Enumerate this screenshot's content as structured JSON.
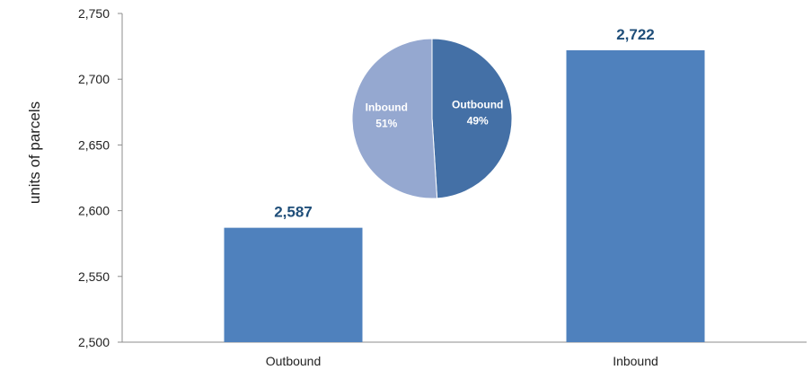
{
  "chart_data": [
    {
      "type": "bar",
      "categories": [
        "Outbound",
        "Inbound"
      ],
      "values": [
        2587,
        2722
      ],
      "data_labels": [
        "2,587",
        "2,722"
      ],
      "ylabel": "units of parcels",
      "ylim": [
        2500,
        2750
      ],
      "yticks": [
        2500,
        2550,
        2600,
        2650,
        2700,
        2750
      ],
      "ytick_labels": [
        "2,500",
        "2,550",
        "2,600",
        "2,650",
        "2,700",
        "2,750"
      ],
      "grid": false,
      "color": "#4f81bd"
    },
    {
      "type": "pie",
      "slices": [
        {
          "name": "Outbound",
          "percent": 49,
          "label": "49%",
          "color": "#4470a6"
        },
        {
          "name": "Inbound",
          "percent": 51,
          "label": "51%",
          "color": "#95a8d0"
        }
      ]
    }
  ]
}
